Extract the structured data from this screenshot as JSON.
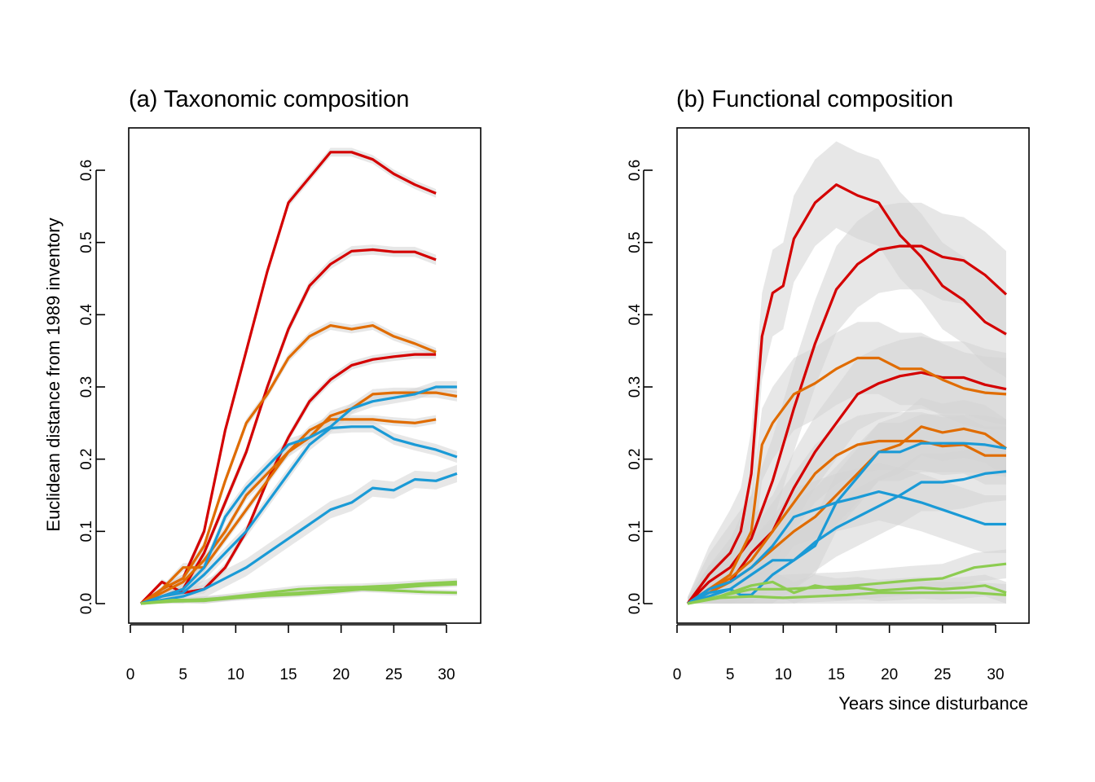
{
  "chart_data": [
    {
      "type": "line",
      "title": "(a) Taxonomic composition",
      "xlabel": "",
      "ylabel": "Euclidean distance from 1989 inventory",
      "xlim": [
        0,
        32
      ],
      "ylim": [
        0,
        0.65
      ],
      "x_ticks": [
        "0",
        "5",
        "10",
        "15",
        "20",
        "25",
        "30"
      ],
      "y_ticks": [
        "0.0",
        "0.1",
        "0.2",
        "0.3",
        "0.4",
        "0.5",
        "0.6"
      ],
      "band_color": "#d3d3d3",
      "series": [
        {
          "color": "#d40000",
          "band": 0.006,
          "x": [
            1,
            3,
            5,
            7,
            9,
            11,
            13,
            15,
            17,
            19,
            21,
            23,
            25,
            27,
            29
          ],
          "y": [
            0,
            0.02,
            0.035,
            0.1,
            0.24,
            0.35,
            0.46,
            0.555,
            0.59,
            0.625,
            0.625,
            0.615,
            0.595,
            0.58,
            0.568
          ]
        },
        {
          "color": "#d40000",
          "band": 0.007,
          "x": [
            1,
            3,
            5,
            7,
            9,
            11,
            13,
            15,
            17,
            19,
            21,
            23,
            25,
            27,
            29
          ],
          "y": [
            0,
            0.01,
            0.02,
            0.07,
            0.14,
            0.21,
            0.3,
            0.38,
            0.44,
            0.47,
            0.488,
            0.49,
            0.487,
            0.487,
            0.476
          ]
        },
        {
          "color": "#d40000",
          "band": 0.006,
          "x": [
            1,
            3,
            5,
            7,
            9,
            11,
            13,
            15,
            17,
            19,
            21,
            23,
            25,
            27,
            29
          ],
          "y": [
            0,
            0.03,
            0.015,
            0.02,
            0.05,
            0.1,
            0.17,
            0.23,
            0.28,
            0.31,
            0.33,
            0.338,
            0.342,
            0.345,
            0.345
          ]
        },
        {
          "color": "#e06c00",
          "band": 0.006,
          "x": [
            1,
            3,
            5,
            7,
            9,
            11,
            13,
            15,
            17,
            19,
            21,
            23,
            25,
            27,
            29
          ],
          "y": [
            0,
            0.02,
            0.035,
            0.08,
            0.17,
            0.25,
            0.29,
            0.34,
            0.37,
            0.385,
            0.38,
            0.385,
            0.37,
            0.36,
            0.348
          ]
        },
        {
          "color": "#e06c00",
          "band": 0.007,
          "x": [
            1,
            3,
            5,
            7,
            9,
            11,
            13,
            15,
            17,
            19,
            21,
            23,
            25,
            27,
            29,
            31
          ],
          "y": [
            0,
            0.015,
            0.03,
            0.06,
            0.1,
            0.15,
            0.18,
            0.21,
            0.23,
            0.26,
            0.27,
            0.29,
            0.292,
            0.292,
            0.292,
            0.287
          ]
        },
        {
          "color": "#e06c00",
          "band": 0.006,
          "x": [
            1,
            3,
            5,
            7,
            9,
            11,
            13,
            15,
            17,
            19,
            21,
            23,
            25,
            27,
            29
          ],
          "y": [
            0,
            0.02,
            0.05,
            0.05,
            0.09,
            0.13,
            0.17,
            0.21,
            0.24,
            0.255,
            0.255,
            0.255,
            0.252,
            0.25,
            0.255
          ]
        },
        {
          "color": "#1a9ad6",
          "band": 0.008,
          "x": [
            1,
            3,
            5,
            7,
            9,
            11,
            13,
            15,
            17,
            19,
            21,
            23,
            25,
            27,
            29,
            31
          ],
          "y": [
            0,
            0.01,
            0.02,
            0.05,
            0.12,
            0.16,
            0.19,
            0.22,
            0.23,
            0.245,
            0.27,
            0.28,
            0.285,
            0.29,
            0.3,
            0.3
          ]
        },
        {
          "color": "#1a9ad6",
          "band": 0.008,
          "x": [
            1,
            3,
            5,
            7,
            9,
            11,
            13,
            15,
            17,
            19,
            21,
            23,
            25,
            27,
            29,
            31
          ],
          "y": [
            0,
            0.01,
            0.015,
            0.04,
            0.07,
            0.1,
            0.14,
            0.18,
            0.22,
            0.243,
            0.245,
            0.245,
            0.228,
            0.22,
            0.213,
            0.203
          ]
        },
        {
          "color": "#1a9ad6",
          "band": 0.012,
          "x": [
            1,
            3,
            5,
            7,
            9,
            11,
            13,
            15,
            17,
            19,
            21,
            23,
            25,
            27,
            29,
            31
          ],
          "y": [
            0,
            0.005,
            0.01,
            0.02,
            0.035,
            0.05,
            0.07,
            0.09,
            0.11,
            0.13,
            0.14,
            0.16,
            0.157,
            0.172,
            0.17,
            0.18
          ]
        },
        {
          "color": "#8ccc50",
          "band": 0.005,
          "x": [
            1,
            4,
            7,
            10,
            13,
            16,
            19,
            22,
            25,
            28,
            31
          ],
          "y": [
            0,
            0.005,
            0.005,
            0.01,
            0.015,
            0.02,
            0.022,
            0.023,
            0.025,
            0.028,
            0.03
          ]
        },
        {
          "color": "#8ccc50",
          "band": 0.004,
          "x": [
            1,
            4,
            7,
            10,
            13,
            16,
            19,
            22,
            25,
            28,
            31
          ],
          "y": [
            0,
            0.004,
            0.006,
            0.009,
            0.012,
            0.015,
            0.018,
            0.02,
            0.018,
            0.016,
            0.015
          ]
        },
        {
          "color": "#8ccc50",
          "band": 0.004,
          "x": [
            1,
            4,
            7,
            10,
            13,
            16,
            19,
            22,
            25,
            28,
            31
          ],
          "y": [
            0,
            0.003,
            0.004,
            0.008,
            0.011,
            0.013,
            0.016,
            0.02,
            0.022,
            0.025,
            0.027
          ]
        }
      ]
    },
    {
      "type": "line",
      "title": "(b) Functional composition",
      "xlabel": "Years since disturbance",
      "ylabel": "",
      "xlim": [
        0,
        32
      ],
      "ylim": [
        0,
        0.65
      ],
      "x_ticks": [
        "0",
        "5",
        "10",
        "15",
        "20",
        "25",
        "30"
      ],
      "y_ticks": [
        "0.0",
        "0.1",
        "0.2",
        "0.3",
        "0.4",
        "0.5",
        "0.6"
      ],
      "band_color": "#d3d3d3",
      "series": [
        {
          "color": "#d40000",
          "band": 0.06,
          "x": [
            1,
            3,
            5,
            6,
            7,
            8,
            9,
            10,
            11,
            13,
            15,
            17,
            19,
            21,
            23,
            25,
            27,
            29,
            31
          ],
          "y": [
            0,
            0.04,
            0.07,
            0.1,
            0.18,
            0.37,
            0.43,
            0.44,
            0.505,
            0.555,
            0.58,
            0.565,
            0.555,
            0.51,
            0.48,
            0.44,
            0.42,
            0.39,
            0.373
          ]
        },
        {
          "color": "#d40000",
          "band": 0.06,
          "x": [
            1,
            3,
            5,
            7,
            9,
            11,
            13,
            15,
            17,
            19,
            21,
            23,
            25,
            27,
            29,
            31
          ],
          "y": [
            0,
            0.03,
            0.05,
            0.09,
            0.17,
            0.27,
            0.36,
            0.435,
            0.47,
            0.49,
            0.495,
            0.495,
            0.48,
            0.475,
            0.455,
            0.428
          ]
        },
        {
          "color": "#d40000",
          "band": 0.05,
          "x": [
            1,
            3,
            5,
            7,
            9,
            11,
            13,
            15,
            17,
            19,
            21,
            23,
            25,
            27,
            29,
            31
          ],
          "y": [
            0,
            0.02,
            0.03,
            0.07,
            0.1,
            0.16,
            0.21,
            0.25,
            0.29,
            0.305,
            0.315,
            0.32,
            0.313,
            0.313,
            0.303,
            0.297
          ]
        },
        {
          "color": "#e06c00",
          "band": 0.05,
          "x": [
            1,
            3,
            5,
            7,
            8,
            9,
            11,
            13,
            15,
            17,
            19,
            21,
            23,
            25,
            27,
            29,
            31
          ],
          "y": [
            0,
            0.02,
            0.04,
            0.1,
            0.22,
            0.25,
            0.29,
            0.305,
            0.325,
            0.34,
            0.34,
            0.325,
            0.325,
            0.31,
            0.298,
            0.292,
            0.29
          ]
        },
        {
          "color": "#e06c00",
          "band": 0.04,
          "x": [
            1,
            3,
            5,
            7,
            9,
            11,
            13,
            15,
            17,
            19,
            21,
            23,
            25,
            27,
            29,
            31
          ],
          "y": [
            0,
            0.02,
            0.035,
            0.06,
            0.1,
            0.14,
            0.18,
            0.205,
            0.22,
            0.225,
            0.225,
            0.225,
            0.218,
            0.22,
            0.205,
            0.205
          ]
        },
        {
          "color": "#e06c00",
          "band": 0.04,
          "x": [
            1,
            3,
            5,
            7,
            9,
            11,
            13,
            15,
            17,
            19,
            21,
            23,
            25,
            27,
            29,
            31
          ],
          "y": [
            0,
            0.015,
            0.03,
            0.05,
            0.075,
            0.1,
            0.12,
            0.15,
            0.18,
            0.21,
            0.22,
            0.245,
            0.237,
            0.242,
            0.235,
            0.215
          ]
        },
        {
          "color": "#1a9ad6",
          "band": 0.04,
          "x": [
            1,
            3,
            5,
            7,
            9,
            11,
            13,
            15,
            17,
            19,
            21,
            23,
            25,
            27,
            29,
            31
          ],
          "y": [
            0,
            0.02,
            0.03,
            0.05,
            0.08,
            0.12,
            0.13,
            0.14,
            0.147,
            0.155,
            0.148,
            0.14,
            0.13,
            0.12,
            0.11,
            0.11
          ]
        },
        {
          "color": "#1a9ad6",
          "band": 0.04,
          "x": [
            1,
            3,
            5,
            7,
            9,
            11,
            13,
            15,
            17,
            19,
            21,
            23,
            25,
            27,
            29,
            31
          ],
          "y": [
            0,
            0.015,
            0.02,
            0.04,
            0.06,
            0.06,
            0.08,
            0.14,
            0.175,
            0.21,
            0.21,
            0.222,
            0.222,
            0.222,
            0.22,
            0.215
          ]
        },
        {
          "color": "#1a9ad6",
          "band": 0.04,
          "x": [
            1,
            3,
            5,
            6,
            7,
            9,
            11,
            13,
            15,
            17,
            19,
            21,
            23,
            25,
            27,
            29,
            31
          ],
          "y": [
            0,
            0.01,
            0.02,
            0.012,
            0.012,
            0.04,
            0.06,
            0.085,
            0.105,
            0.12,
            0.135,
            0.15,
            0.168,
            0.168,
            0.172,
            0.18,
            0.183
          ]
        },
        {
          "color": "#8ccc50",
          "band": 0.02,
          "x": [
            1,
            4,
            7,
            10,
            13,
            16,
            19,
            22,
            25,
            28,
            31
          ],
          "y": [
            0,
            0.01,
            0.02,
            0.02,
            0.022,
            0.024,
            0.028,
            0.032,
            0.035,
            0.05,
            0.055
          ]
        },
        {
          "color": "#8ccc50",
          "band": 0.015,
          "x": [
            1,
            4,
            7,
            9,
            11,
            13,
            15,
            17,
            19,
            21,
            23,
            25,
            27,
            29,
            31
          ],
          "y": [
            0,
            0.01,
            0.025,
            0.03,
            0.015,
            0.025,
            0.02,
            0.022,
            0.018,
            0.02,
            0.022,
            0.02,
            0.022,
            0.025,
            0.015
          ]
        },
        {
          "color": "#8ccc50",
          "band": 0.015,
          "x": [
            1,
            4,
            7,
            10,
            13,
            16,
            19,
            22,
            25,
            28,
            31
          ],
          "y": [
            0,
            0.008,
            0.01,
            0.008,
            0.01,
            0.012,
            0.015,
            0.015,
            0.015,
            0.015,
            0.012
          ]
        }
      ]
    }
  ]
}
